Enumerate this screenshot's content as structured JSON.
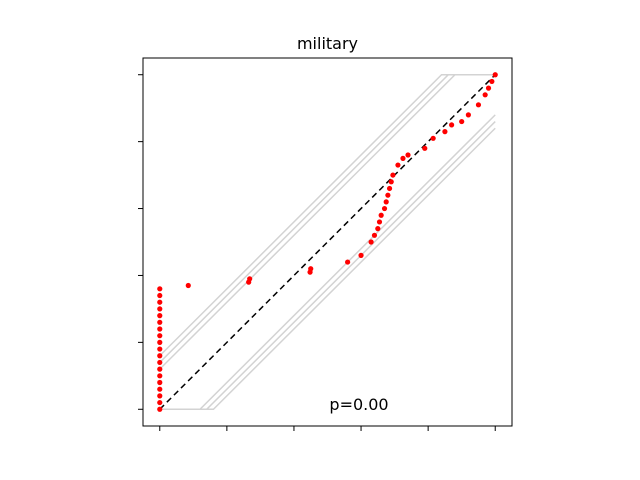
{
  "chart_data": {
    "type": "scatter",
    "title": "military",
    "annotation": "p=0.00",
    "xlabel": "",
    "ylabel": "",
    "xlim": [
      -0.05,
      1.05
    ],
    "ylim": [
      -0.05,
      1.05
    ],
    "x_ticks": [
      0,
      0.2,
      0.4,
      0.6,
      0.8,
      1.0
    ],
    "y_ticks": [
      0,
      0.2,
      0.4,
      0.6,
      0.8,
      1.0
    ],
    "tick_labels_visible": false,
    "grid": false,
    "colors": {
      "points": "#ff0000",
      "reference_line": "#000000",
      "envelope": "#d3d3d3"
    },
    "reference_line": {
      "from": [
        0,
        0
      ],
      "to": [
        1,
        1
      ],
      "style": "dashed"
    },
    "envelope_lines": [
      {
        "from": [
          0,
          0.16
        ],
        "to": [
          0.84,
          1.0
        ]
      },
      {
        "from": [
          0,
          0.14
        ],
        "to": [
          0.86,
          1.0
        ]
      },
      {
        "from": [
          0,
          0.12
        ],
        "to": [
          0.88,
          1.0
        ]
      },
      {
        "from": [
          0.12,
          0
        ],
        "to": [
          1.0,
          0.88
        ]
      },
      {
        "from": [
          0.14,
          0
        ],
        "to": [
          1.0,
          0.86
        ]
      },
      {
        "from": [
          0.16,
          0
        ],
        "to": [
          1.0,
          0.84
        ]
      }
    ],
    "points": [
      {
        "x": 0,
        "y": 0.0
      },
      {
        "x": 0,
        "y": 0.02
      },
      {
        "x": 0,
        "y": 0.04
      },
      {
        "x": 0,
        "y": 0.06
      },
      {
        "x": 0,
        "y": 0.08
      },
      {
        "x": 0,
        "y": 0.1
      },
      {
        "x": 0,
        "y": 0.12
      },
      {
        "x": 0,
        "y": 0.14
      },
      {
        "x": 0,
        "y": 0.16
      },
      {
        "x": 0,
        "y": 0.18
      },
      {
        "x": 0,
        "y": 0.2
      },
      {
        "x": 0,
        "y": 0.22
      },
      {
        "x": 0,
        "y": 0.24
      },
      {
        "x": 0,
        "y": 0.26
      },
      {
        "x": 0,
        "y": 0.28
      },
      {
        "x": 0,
        "y": 0.3
      },
      {
        "x": 0,
        "y": 0.32
      },
      {
        "x": 0,
        "y": 0.34
      },
      {
        "x": 0,
        "y": 0.36
      },
      {
        "x": 0.085,
        "y": 0.37
      },
      {
        "x": 0.265,
        "y": 0.38
      },
      {
        "x": 0.268,
        "y": 0.39
      },
      {
        "x": 0.448,
        "y": 0.41
      },
      {
        "x": 0.45,
        "y": 0.42
      },
      {
        "x": 0.56,
        "y": 0.44
      },
      {
        "x": 0.6,
        "y": 0.46
      },
      {
        "x": 0.63,
        "y": 0.5
      },
      {
        "x": 0.64,
        "y": 0.52
      },
      {
        "x": 0.65,
        "y": 0.54
      },
      {
        "x": 0.655,
        "y": 0.56
      },
      {
        "x": 0.66,
        "y": 0.58
      },
      {
        "x": 0.67,
        "y": 0.6
      },
      {
        "x": 0.675,
        "y": 0.62
      },
      {
        "x": 0.68,
        "y": 0.64
      },
      {
        "x": 0.685,
        "y": 0.66
      },
      {
        "x": 0.69,
        "y": 0.68
      },
      {
        "x": 0.695,
        "y": 0.7
      },
      {
        "x": 0.71,
        "y": 0.73
      },
      {
        "x": 0.725,
        "y": 0.75
      },
      {
        "x": 0.74,
        "y": 0.76
      },
      {
        "x": 0.79,
        "y": 0.78
      },
      {
        "x": 0.815,
        "y": 0.81
      },
      {
        "x": 0.85,
        "y": 0.83
      },
      {
        "x": 0.87,
        "y": 0.85
      },
      {
        "x": 0.9,
        "y": 0.86
      },
      {
        "x": 0.92,
        "y": 0.88
      },
      {
        "x": 0.95,
        "y": 0.91
      },
      {
        "x": 0.97,
        "y": 0.94
      },
      {
        "x": 0.98,
        "y": 0.96
      },
      {
        "x": 0.99,
        "y": 0.98
      },
      {
        "x": 1.0,
        "y": 1.0
      }
    ]
  }
}
